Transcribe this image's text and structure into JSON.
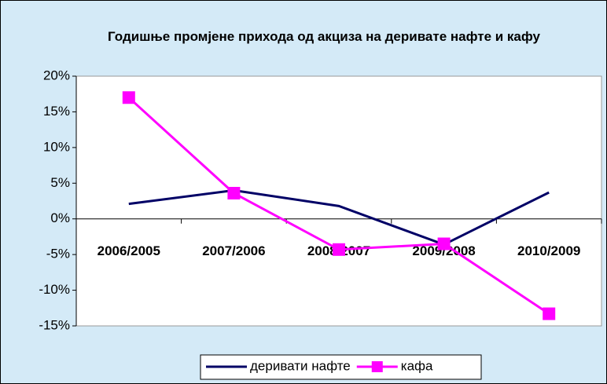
{
  "chart_data": {
    "type": "line",
    "title": "Годишње промјене прихода од акциза на деривате нафте и кафу",
    "categories": [
      "2006/2005",
      "2007/2006",
      "2008/2007",
      "2009/2008",
      "2010/2009"
    ],
    "series": [
      {
        "name": "деривати нафте",
        "color": "#000066",
        "values": [
          2.1,
          4.0,
          1.8,
          -3.6,
          3.7
        ]
      },
      {
        "name": "кафа",
        "color": "#ff00ff",
        "values": [
          17.0,
          3.6,
          -4.3,
          -3.5,
          -13.3
        ]
      }
    ],
    "ylim": [
      -15,
      20
    ],
    "yticks": [
      {
        "value": -15,
        "label": "-15%"
      },
      {
        "value": -10,
        "label": "-10%"
      },
      {
        "value": -5,
        "label": "-5%"
      },
      {
        "value": 0,
        "label": "0%"
      },
      {
        "value": 5,
        "label": "5%"
      },
      {
        "value": 10,
        "label": "10%"
      },
      {
        "value": 15,
        "label": "15%"
      },
      {
        "value": 20,
        "label": "20%"
      }
    ],
    "legend": "bottom"
  }
}
